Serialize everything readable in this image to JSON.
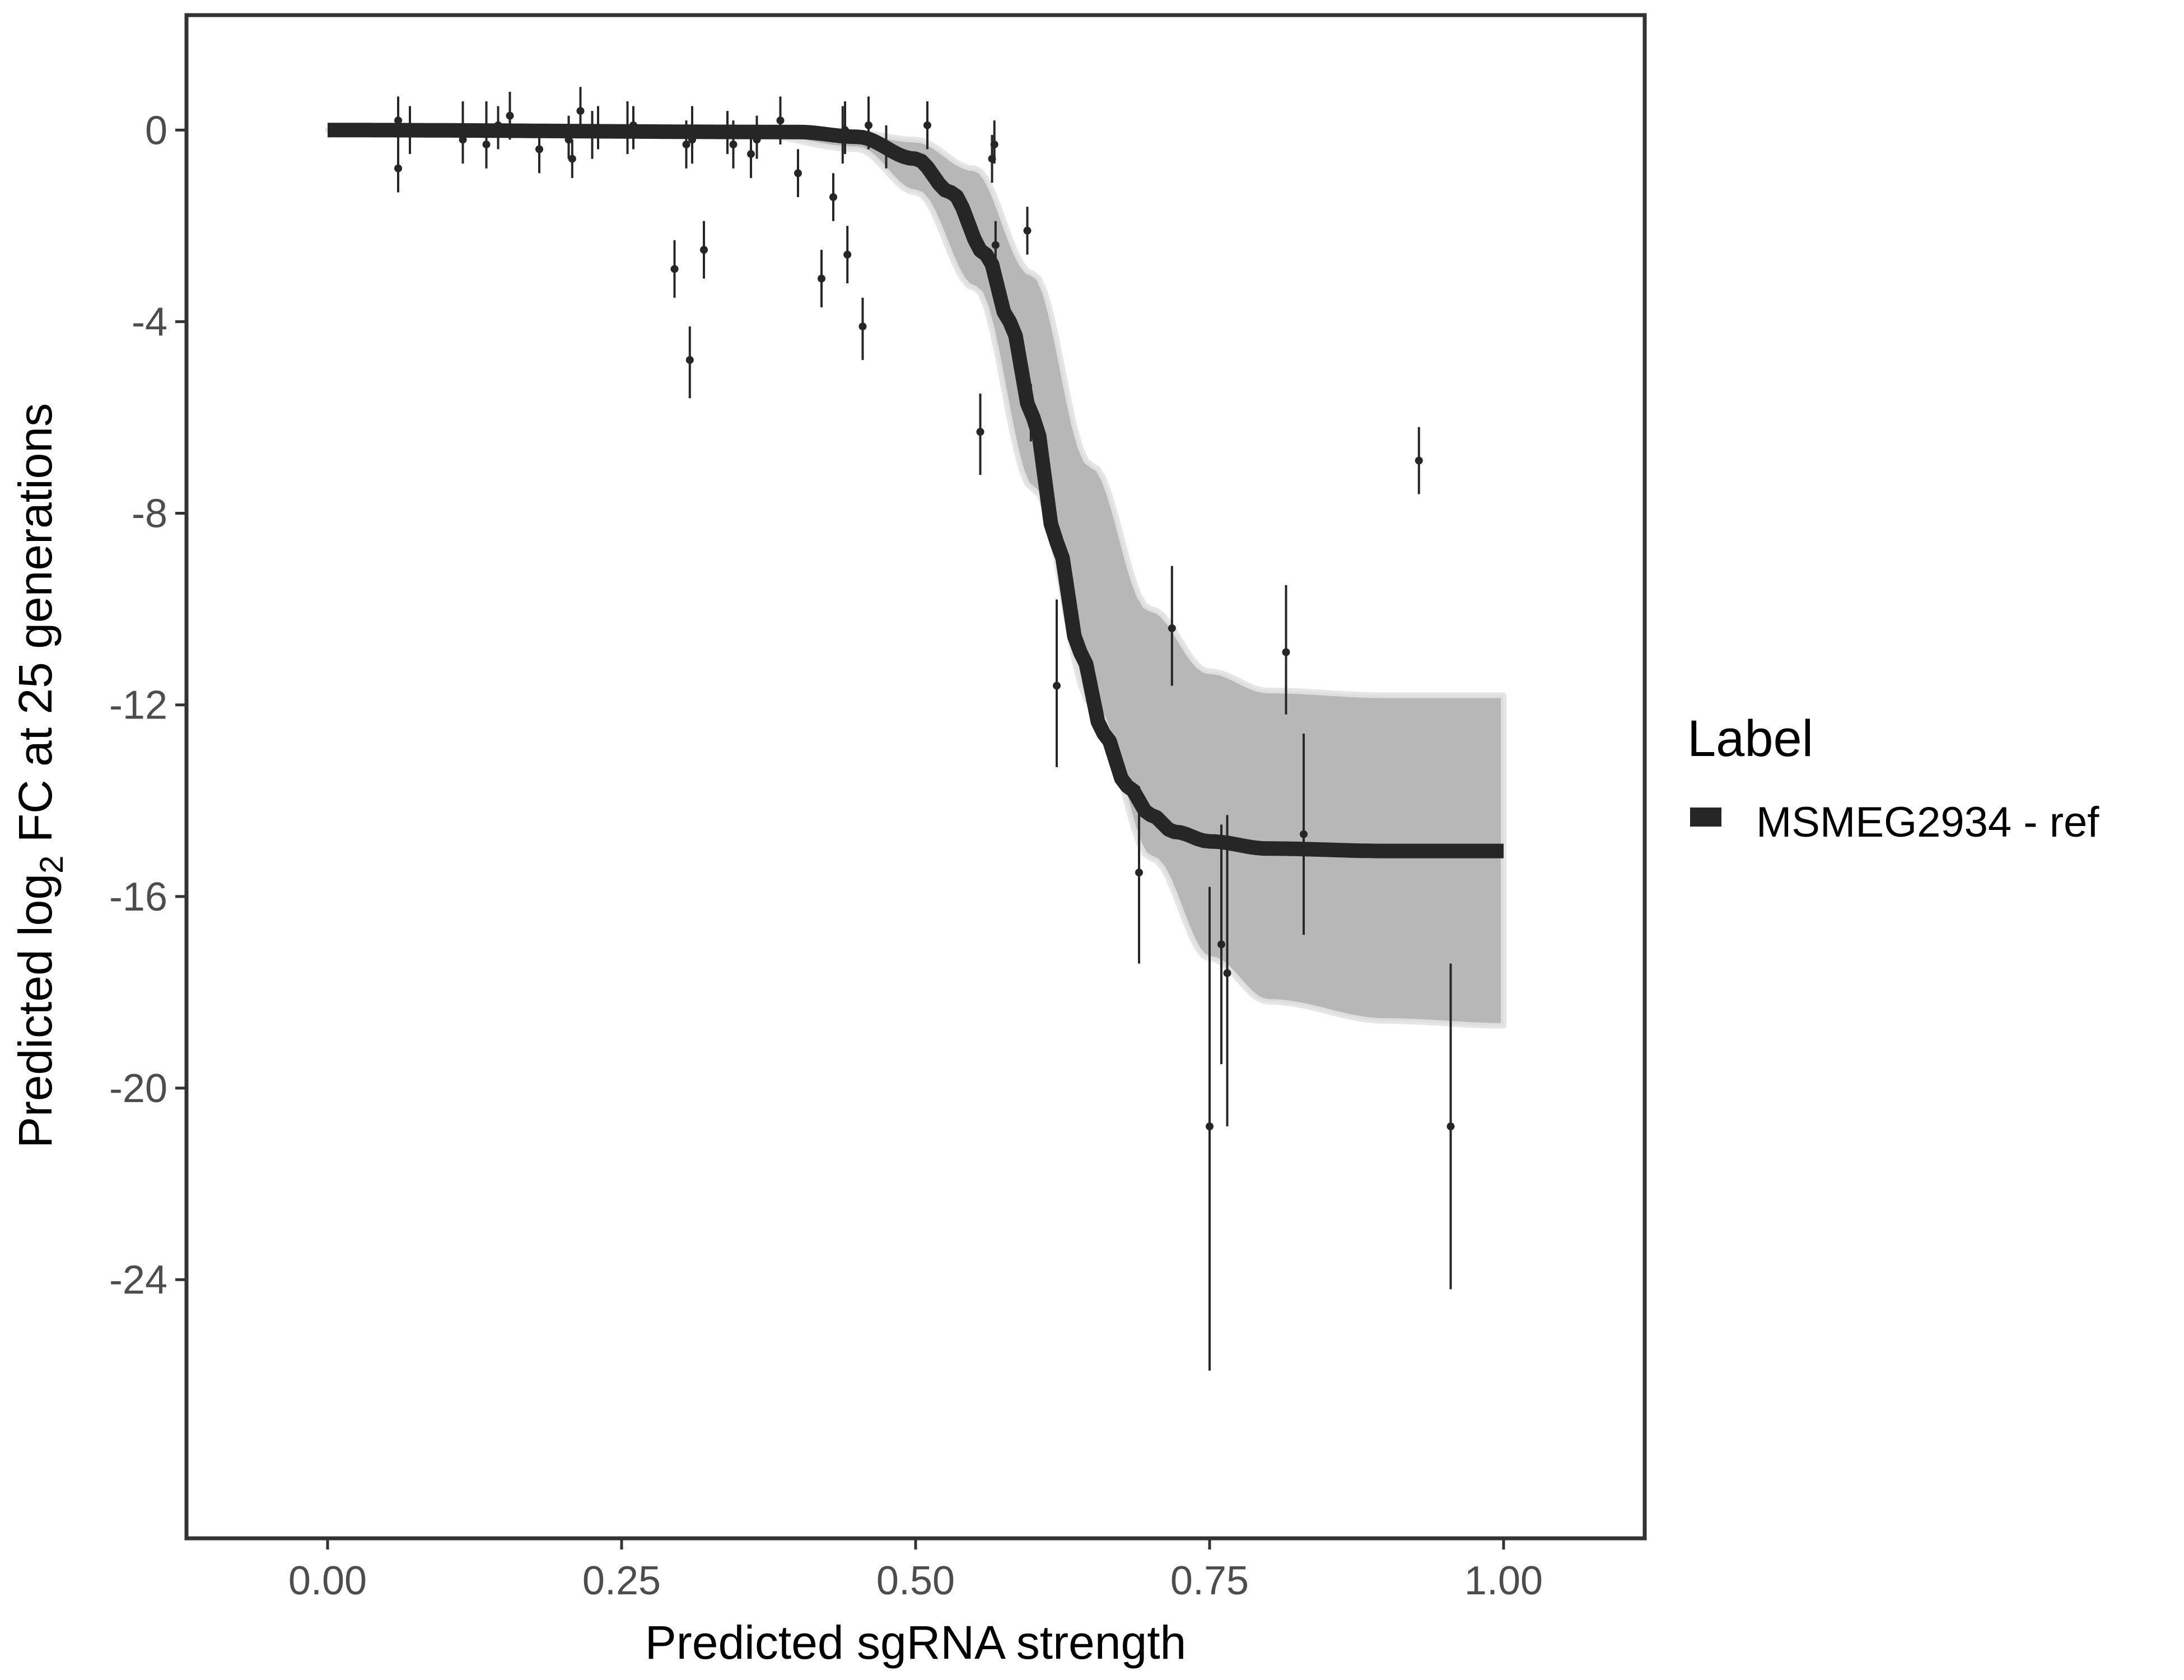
{
  "chart_data": {
    "type": "line",
    "xlabel": "Predicted sgRNA strength",
    "ylabel": {
      "prefix": "Predicted  log",
      "subscript": "2",
      "suffix": " FC at 25 generations"
    },
    "xlim": [
      -0.12,
      1.12
    ],
    "ylim": [
      -29.4,
      2.4
    ],
    "x_ticks": [
      0,
      0.25,
      0.5,
      0.75,
      1
    ],
    "x_tick_labels": [
      "0.00",
      "0.25",
      "0.50",
      "0.75",
      "1.00"
    ],
    "y_ticks": [
      0,
      -4,
      -8,
      -12,
      -16,
      -20,
      -24
    ],
    "y_tick_labels": [
      "0",
      "-4",
      "-8",
      "-12",
      "-16",
      "-20",
      "-24"
    ],
    "grid": false,
    "legend": {
      "title": "Label",
      "position": "right",
      "entries": [
        {
          "name": "MSMEG2934 - ref",
          "color": "#262626"
        }
      ]
    },
    "fit_curve": {
      "name": "MSMEG2934 - ref",
      "color": "#262626",
      "x": [
        0.0,
        0.4,
        0.45,
        0.5,
        0.53,
        0.56,
        0.58,
        0.6,
        0.62,
        0.64,
        0.66,
        0.68,
        0.7,
        0.72,
        0.75,
        0.8,
        0.9,
        1.0
      ],
      "y": [
        0.0,
        -0.04,
        -0.14,
        -0.6,
        -1.3,
        -2.6,
        -4.0,
        -6.0,
        -8.6,
        -10.9,
        -12.6,
        -13.7,
        -14.3,
        -14.65,
        -14.85,
        -15.0,
        -15.05,
        -15.05
      ]
    },
    "posterior_band": {
      "color": "#aaaaaa",
      "x": [
        0.0,
        0.35,
        0.45,
        0.5,
        0.55,
        0.6,
        0.65,
        0.7,
        0.75,
        0.8,
        0.9,
        1.0
      ],
      "upper": [
        0.0,
        0.0,
        -0.05,
        -0.2,
        -0.8,
        -3.0,
        -7.0,
        -10.0,
        -11.3,
        -11.7,
        -11.8,
        -11.8
      ],
      "lower": [
        0.0,
        -0.05,
        -0.4,
        -1.3,
        -3.3,
        -7.5,
        -12.0,
        -15.2,
        -17.3,
        -18.2,
        -18.6,
        -18.7
      ]
    },
    "points": [
      {
        "x": 0.06,
        "y": 0.2,
        "lo": -0.5,
        "hi": 0.7
      },
      {
        "x": 0.06,
        "y": -0.8,
        "lo": -1.3,
        "hi": -0.3
      },
      {
        "x": 0.07,
        "y": 0.0,
        "lo": -0.5,
        "hi": 0.5
      },
      {
        "x": 0.115,
        "y": -0.2,
        "lo": -0.7,
        "hi": 0.6
      },
      {
        "x": 0.135,
        "y": -0.3,
        "lo": -0.8,
        "hi": 0.6
      },
      {
        "x": 0.145,
        "y": 0.1,
        "lo": -0.4,
        "hi": 0.5
      },
      {
        "x": 0.155,
        "y": 0.3,
        "lo": -0.2,
        "hi": 0.8
      },
      {
        "x": 0.18,
        "y": -0.4,
        "lo": -0.9,
        "hi": 0.0
      },
      {
        "x": 0.205,
        "y": -0.2,
        "lo": -0.6,
        "hi": 0.3
      },
      {
        "x": 0.208,
        "y": -0.6,
        "lo": -1.0,
        "hi": -0.2
      },
      {
        "x": 0.215,
        "y": 0.4,
        "lo": -0.1,
        "hi": 0.9
      },
      {
        "x": 0.225,
        "y": -0.1,
        "lo": -0.6,
        "hi": 0.4
      },
      {
        "x": 0.23,
        "y": 0.0,
        "lo": -0.4,
        "hi": 0.5
      },
      {
        "x": 0.255,
        "y": 0.0,
        "lo": -0.5,
        "hi": 0.6
      },
      {
        "x": 0.26,
        "y": 0.1,
        "lo": -0.4,
        "hi": 0.5
      },
      {
        "x": 0.295,
        "y": -2.9,
        "lo": -3.5,
        "hi": -2.3
      },
      {
        "x": 0.305,
        "y": -0.3,
        "lo": -0.8,
        "hi": 0.2
      },
      {
        "x": 0.308,
        "y": -4.8,
        "lo": -5.6,
        "hi": -4.1
      },
      {
        "x": 0.31,
        "y": -0.2,
        "lo": -0.7,
        "hi": 0.5
      },
      {
        "x": 0.32,
        "y": -2.5,
        "lo": -3.1,
        "hi": -1.9
      },
      {
        "x": 0.34,
        "y": -0.1,
        "lo": -0.5,
        "hi": 0.4
      },
      {
        "x": 0.345,
        "y": -0.3,
        "lo": -0.8,
        "hi": 0.2
      },
      {
        "x": 0.36,
        "y": -0.5,
        "lo": -1.0,
        "hi": 0.0
      },
      {
        "x": 0.365,
        "y": -0.2,
        "lo": -0.6,
        "hi": 0.3
      },
      {
        "x": 0.385,
        "y": 0.2,
        "lo": -0.3,
        "hi": 0.7
      },
      {
        "x": 0.4,
        "y": -0.9,
        "lo": -1.4,
        "hi": -0.4
      },
      {
        "x": 0.42,
        "y": -3.1,
        "lo": -3.7,
        "hi": -2.5
      },
      {
        "x": 0.43,
        "y": -1.4,
        "lo": -1.9,
        "hi": -0.9
      },
      {
        "x": 0.438,
        "y": -0.2,
        "lo": -0.7,
        "hi": 0.5
      },
      {
        "x": 0.44,
        "y": 0.0,
        "lo": -0.5,
        "hi": 0.6
      },
      {
        "x": 0.442,
        "y": -2.6,
        "lo": -3.2,
        "hi": -2.0
      },
      {
        "x": 0.455,
        "y": -4.1,
        "lo": -4.8,
        "hi": -3.5
      },
      {
        "x": 0.46,
        "y": 0.1,
        "lo": -0.4,
        "hi": 0.7
      },
      {
        "x": 0.475,
        "y": -0.3,
        "lo": -0.8,
        "hi": 0.1
      },
      {
        "x": 0.51,
        "y": 0.1,
        "lo": -0.4,
        "hi": 0.6
      },
      {
        "x": 0.555,
        "y": -6.3,
        "lo": -7.2,
        "hi": -5.5
      },
      {
        "x": 0.565,
        "y": -0.6,
        "lo": -1.1,
        "hi": -0.1
      },
      {
        "x": 0.567,
        "y": -0.3,
        "lo": -0.7,
        "hi": 0.2
      },
      {
        "x": 0.568,
        "y": -2.4,
        "lo": -3.0,
        "hi": -1.9
      },
      {
        "x": 0.595,
        "y": -2.1,
        "lo": -2.6,
        "hi": -1.6
      },
      {
        "x": 0.598,
        "y": -5.9,
        "lo": -6.5,
        "hi": -5.3
      },
      {
        "x": 0.62,
        "y": -11.6,
        "lo": -13.3,
        "hi": -9.8
      },
      {
        "x": 0.69,
        "y": -15.5,
        "lo": -17.4,
        "hi": -13.7
      },
      {
        "x": 0.718,
        "y": -10.4,
        "lo": -11.6,
        "hi": -9.1
      },
      {
        "x": 0.75,
        "y": -20.8,
        "lo": -25.9,
        "hi": -15.8
      },
      {
        "x": 0.76,
        "y": -17.0,
        "lo": -19.5,
        "hi": -14.5
      },
      {
        "x": 0.765,
        "y": -17.6,
        "lo": -20.8,
        "hi": -14.3
      },
      {
        "x": 0.815,
        "y": -10.9,
        "lo": -12.2,
        "hi": -9.5
      },
      {
        "x": 0.83,
        "y": -14.7,
        "lo": -16.8,
        "hi": -12.6
      },
      {
        "x": 0.928,
        "y": -6.9,
        "lo": -7.6,
        "hi": -6.2
      },
      {
        "x": 0.955,
        "y": -20.8,
        "lo": -24.2,
        "hi": -17.4
      }
    ]
  }
}
